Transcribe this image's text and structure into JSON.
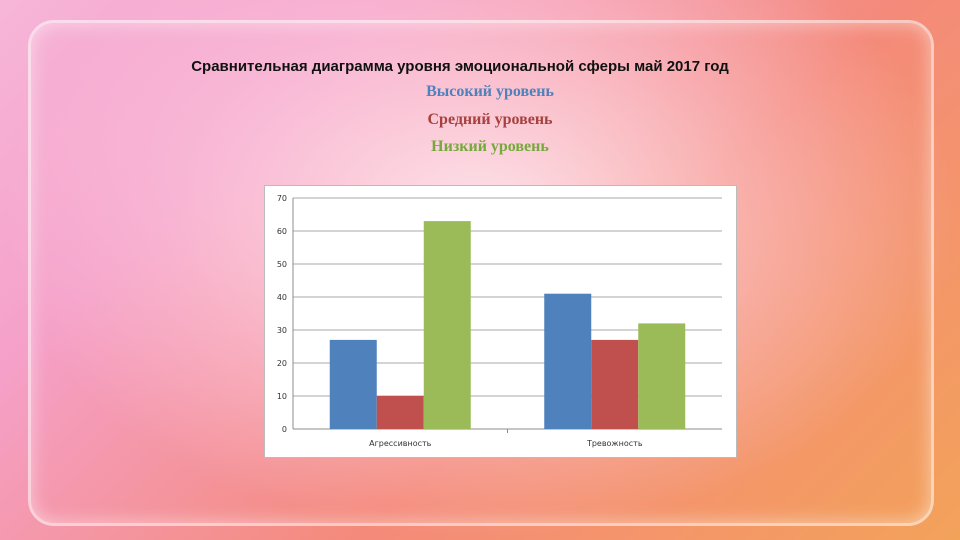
{
  "slide": {
    "title": "Сравнительная диаграмма уровня эмоциональной сферы май 2017 год",
    "legend": [
      {
        "label": "Высокий уровень",
        "color": "#4f81bd"
      },
      {
        "label": "Средний уровень",
        "color": "#c0504d"
      },
      {
        "label": "Низкий уровень",
        "color": "#9bbb59"
      }
    ]
  },
  "chart_data": {
    "type": "bar",
    "categories": [
      "Агрессивность",
      "Тревожность"
    ],
    "series": [
      {
        "name": "Высокий уровень",
        "color": "#4f81bd",
        "values": [
          27,
          41
        ]
      },
      {
        "name": "Средний уровень",
        "color": "#c0504d",
        "values": [
          10,
          27
        ]
      },
      {
        "name": "Низкий уровень",
        "color": "#9bbb59",
        "values": [
          63,
          32
        ]
      }
    ],
    "yticks": [
      "0",
      "10",
      "20",
      "30",
      "40",
      "50",
      "60",
      "70"
    ],
    "ylim": [
      0,
      70
    ],
    "grid": true
  }
}
